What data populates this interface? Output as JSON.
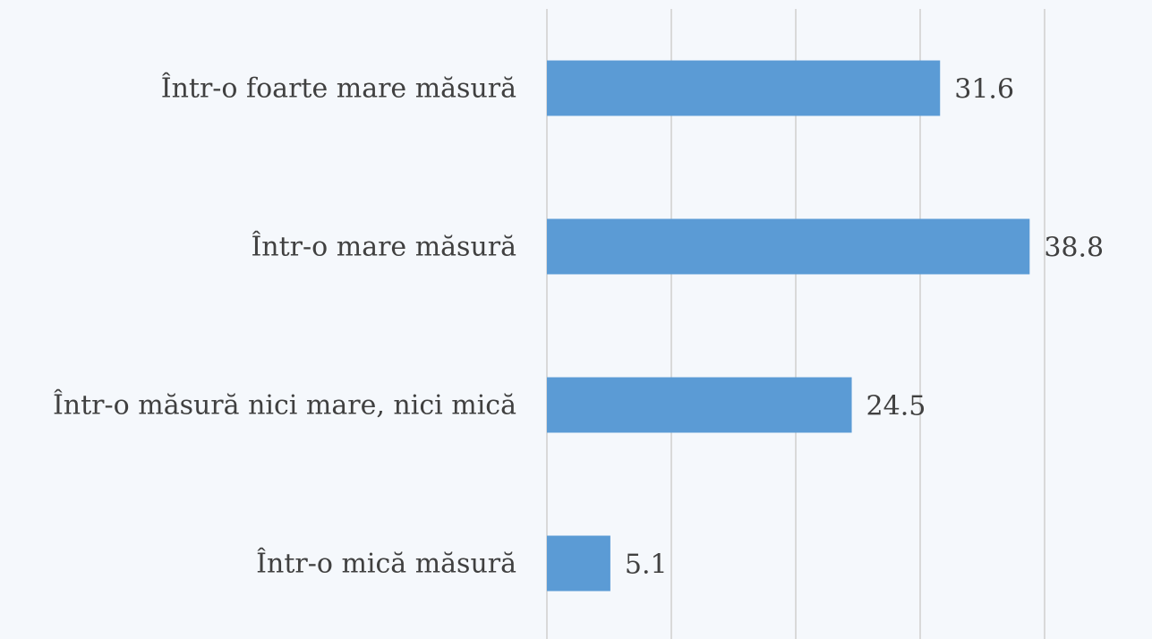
{
  "chart_data": {
    "type": "bar",
    "orientation": "horizontal",
    "categories": [
      "Într-o foarte mare măsură",
      "Într-o mare măsură",
      "Într-o măsură nici mare, nici mică",
      "Într-o mică măsură"
    ],
    "values": [
      31.6,
      38.8,
      24.5,
      5.1
    ],
    "color": "#5b9bd5",
    "xlim": [
      0,
      40
    ],
    "xticks": [
      0,
      10,
      20,
      30,
      40
    ],
    "grid": true
  }
}
